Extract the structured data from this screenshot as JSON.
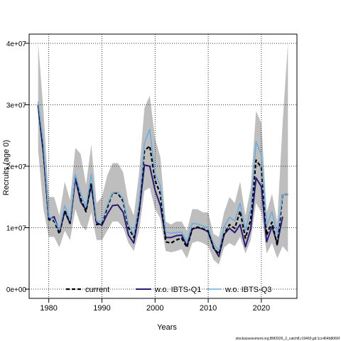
{
  "chart_data": {
    "type": "line",
    "xlabel": "Years",
    "ylabel": "Recruits (age 0)",
    "xlim": [
      1976.3,
      2026.7
    ],
    "ylim": [
      -1500000,
      41500000
    ],
    "x_ticks": [
      1980,
      1990,
      2000,
      2010,
      2020
    ],
    "x_tick_labels": [
      "1980",
      "1990",
      "2000",
      "2010",
      "2020"
    ],
    "y_ticks": [
      0,
      10000000,
      20000000,
      30000000,
      40000000
    ],
    "y_tick_labels": [
      "0e+00",
      "1e+07",
      "2e+07",
      "3e+07",
      "4e+07"
    ],
    "grid": "dotted",
    "legend_position": "bottom",
    "years": [
      1978,
      1979,
      1980,
      1981,
      1982,
      1983,
      1984,
      1985,
      1986,
      1987,
      1988,
      1989,
      1990,
      1991,
      1992,
      1993,
      1994,
      1995,
      1996,
      1997,
      1998,
      1999,
      2000,
      2001,
      2002,
      2003,
      2004,
      2005,
      2006,
      2007,
      2008,
      2009,
      2010,
      2011,
      2012,
      2013,
      2014,
      2015,
      2016,
      2017,
      2018,
      2019,
      2020,
      2021,
      2022,
      2023,
      2024,
      2025
    ],
    "series": [
      {
        "name": "current",
        "color": "#000000",
        "style": "dashed",
        "values": [
          30000000,
          22500000,
          11300000,
          11100000,
          9000000,
          12800000,
          10700000,
          18500000,
          14700000,
          12600000,
          17300000,
          10500000,
          10700000,
          13200000,
          15700000,
          15600000,
          14300000,
          10000000,
          8400000,
          13000000,
          22500000,
          23300000,
          17700000,
          15500000,
          7700000,
          7500000,
          8000000,
          8300000,
          6800000,
          9800000,
          10100000,
          9800000,
          9500000,
          6700000,
          5700000,
          9000000,
          10500000,
          9900000,
          12700000,
          8300000,
          11300000,
          21000000,
          19800000,
          8800000,
          10900000,
          7100000,
          15400000,
          15400000
        ]
      },
      {
        "name": "w.o. IBTS-Q1",
        "color": "#2a1a7a",
        "style": "solid",
        "values": [
          29800000,
          22000000,
          11300000,
          11800000,
          9300000,
          12600000,
          10700000,
          18000000,
          14200000,
          12900000,
          16900000,
          10800000,
          10400000,
          12200000,
          13600000,
          13700000,
          12500000,
          8800000,
          7500000,
          12500000,
          20200000,
          20000000,
          16100000,
          13600000,
          8400000,
          8400000,
          8700000,
          8800000,
          7000000,
          9800000,
          10000000,
          9800000,
          9300000,
          6800000,
          5300000,
          8900000,
          9900000,
          9200000,
          10500000,
          6900000,
          9800000,
          18100000,
          16700000,
          7700000,
          10200000,
          7400000,
          11800000,
          null
        ]
      },
      {
        "name": "w.o. IBTS-Q3",
        "color": "#6aaee0",
        "style": "solid",
        "values": [
          30500000,
          23500000,
          11800000,
          11300000,
          9600000,
          13600000,
          11200000,
          18700000,
          15500000,
          13400000,
          18700000,
          11100000,
          11000000,
          13700000,
          15700000,
          15800000,
          14700000,
          10500000,
          8800000,
          14100000,
          23800000,
          26000000,
          18800000,
          16800000,
          9300000,
          9100000,
          9200000,
          9300000,
          7700000,
          10700000,
          10600000,
          10300000,
          10000000,
          7400000,
          6300000,
          10100000,
          11700000,
          11100000,
          14000000,
          9500000,
          13100000,
          24000000,
          21900000,
          10300000,
          12600000,
          8900000,
          15400000,
          15400000
        ]
      },
      {
        "name": "confidence band",
        "color": "#bebebe",
        "style": "area",
        "lower": [
          22500000,
          13000000,
          8500000,
          8500000,
          6800000,
          9500000,
          8000000,
          13000000,
          10500000,
          9500000,
          12500000,
          8000000,
          8000000,
          9500000,
          11000000,
          11000000,
          10000000,
          7500000,
          6200000,
          9500000,
          16000000,
          16500000,
          13000000,
          11500000,
          6200000,
          6000000,
          6200000,
          6500000,
          5000000,
          7500000,
          7800000,
          7500000,
          7000000,
          4800000,
          4000000,
          6800000,
          7500000,
          7000000,
          8500000,
          5800000,
          8000000,
          14000000,
          12500000,
          5800000,
          7500000,
          5000000,
          7000000,
          6000000
        ],
        "upper": [
          40000000,
          29000000,
          15000000,
          15000000,
          12000000,
          17500000,
          14500000,
          23000000,
          22000000,
          17000000,
          23500000,
          14000000,
          15000000,
          18500000,
          20500000,
          20500000,
          19000000,
          14000000,
          12000000,
          19000000,
          29500000,
          31500000,
          24500000,
          21500000,
          11000000,
          10500000,
          11000000,
          11000000,
          9500000,
          13000000,
          13000000,
          12500000,
          12500000,
          9000000,
          8500000,
          12500000,
          15000000,
          14000000,
          17500000,
          12000000,
          16500000,
          29000000,
          27000000,
          12500000,
          15500000,
          11000000,
          27000000,
          40000000
        ]
      }
    ]
  },
  "footer": {
    "source": "stockassessment.org,BM2026_2_catch8,r19469,git:1cc464b8066f"
  }
}
